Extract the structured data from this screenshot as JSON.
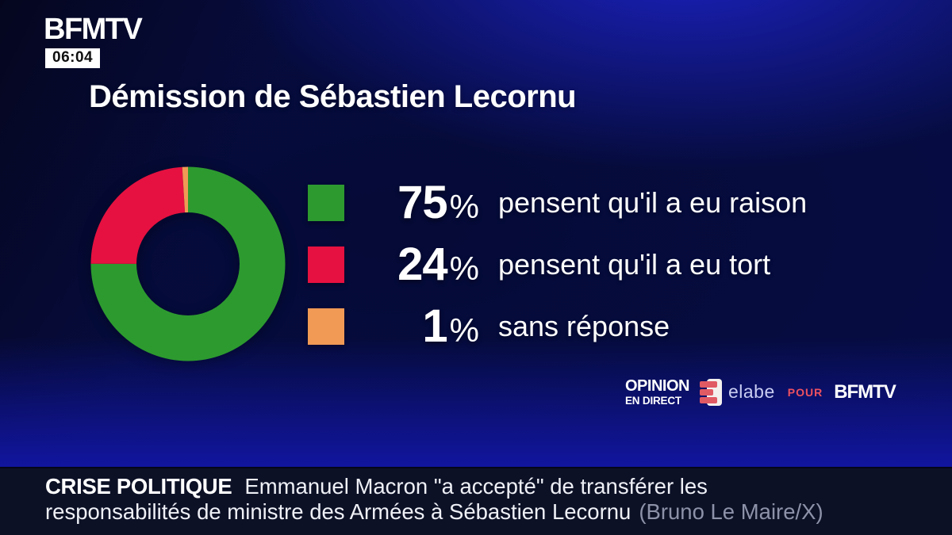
{
  "channel": {
    "logo_text": "BFMTV",
    "time": "06:04"
  },
  "headline": "Démission de Sébastien Lecornu",
  "chart_data": {
    "type": "pie",
    "subtype": "donut",
    "title": "Démission de Sébastien Lecornu",
    "unit": "%",
    "direction": "clockwise",
    "start_angle": "12-oclock",
    "legend_position": "right",
    "segments": [
      {
        "value": 75,
        "label": "pensent qu'il a eu raison",
        "color": "#2d9a2f"
      },
      {
        "value": 24,
        "label": "pensent qu'il a eu tort",
        "color": "#e61140"
      },
      {
        "value": 1,
        "label": "sans réponse",
        "color": "#f09a55"
      }
    ]
  },
  "branding": {
    "program_line1": "OPINION",
    "program_line2": "EN DIRECT",
    "pollster": "elabe",
    "pour": "POUR",
    "network": "BFMTV",
    "accent_red": "#ee5160",
    "elabe_logo_color": "#e05a64"
  },
  "ticker": {
    "tag": "CRISE POLITIQUE",
    "line1": "Emmanuel Macron \"a accepté\" de transférer les",
    "line2": "responsabilités de ministre des Armées à Sébastien Lecornu",
    "credit": "(Bruno Le Maire/X)"
  }
}
